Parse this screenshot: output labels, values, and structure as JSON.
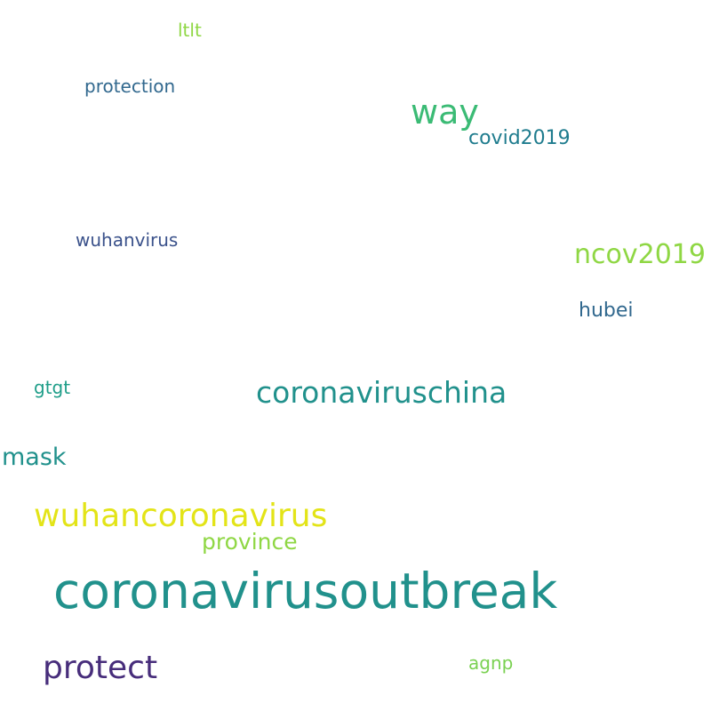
{
  "words": [
    {
      "text": "coronavirusoutbreak",
      "color": "#21918c"
    },
    {
      "text": "wuhancoronavirus",
      "color": "#e3e418"
    },
    {
      "text": "coronaviruschina",
      "color": "#21918c"
    },
    {
      "text": "protect",
      "color": "#472d7b"
    },
    {
      "text": "way",
      "color": "#3bbb75"
    },
    {
      "text": "ncov2019",
      "color": "#8fd744"
    },
    {
      "text": "mask",
      "color": "#21918c"
    },
    {
      "text": "province",
      "color": "#8fd744"
    },
    {
      "text": "covid2019",
      "color": "#1f7c8e"
    },
    {
      "text": "hubei",
      "color": "#31688e"
    },
    {
      "text": "wuhanvirus",
      "color": "#3b528b"
    },
    {
      "text": "protection",
      "color": "#31688e"
    },
    {
      "text": "ltlt",
      "color": "#8fd744"
    },
    {
      "text": "gtgt",
      "color": "#1f9e89"
    },
    {
      "text": "agnp",
      "color": "#7ad151"
    }
  ]
}
